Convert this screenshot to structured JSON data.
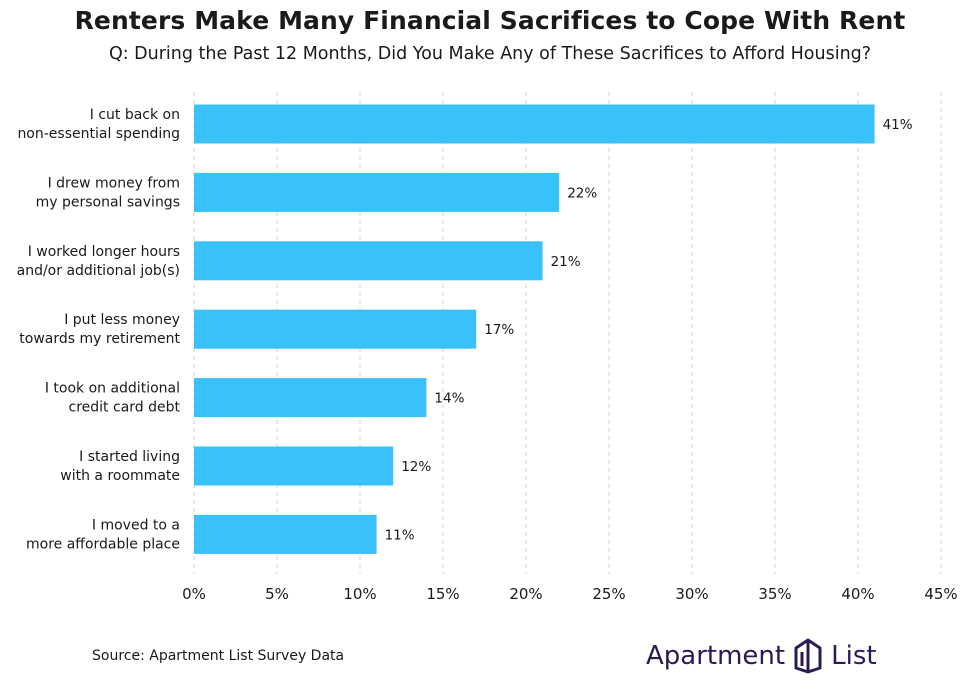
{
  "title": "Renters Make Many Financial Sacrifices to Cope With Rent",
  "subtitle": "Q: During the Past 12 Months, Did You Make Any of These Sacrifices to Afford Housing?",
  "source": "Source: Apartment List Survey Data",
  "brand": {
    "word1": "Apartment",
    "word2": "List",
    "logo_icon": "apartment-list-logo-icon"
  },
  "colors": {
    "bar": "#38c1fb",
    "grid": "#d0d0d0",
    "text": "#1a1a1a",
    "brand": "#2c1a52"
  },
  "chart_data": {
    "type": "bar",
    "orientation": "horizontal",
    "categories": [
      [
        "I cut back on",
        "non-essential spending"
      ],
      [
        "I drew money from",
        "my personal savings"
      ],
      [
        "I worked longer hours",
        "and/or additional job(s)"
      ],
      [
        "I put less money",
        "towards my retirement"
      ],
      [
        "I took on additional",
        "credit card debt"
      ],
      [
        "I started living",
        "with a roommate"
      ],
      [
        "I moved to a",
        "more affordable place"
      ]
    ],
    "values": [
      41,
      22,
      21,
      17,
      14,
      12,
      11
    ],
    "value_labels": [
      "41%",
      "22%",
      "21%",
      "17%",
      "14%",
      "12%",
      "11%"
    ],
    "xlim": [
      0,
      45
    ],
    "x_ticks": [
      0,
      5,
      10,
      15,
      20,
      25,
      30,
      35,
      40,
      45
    ],
    "x_tick_labels": [
      "0%",
      "5%",
      "10%",
      "15%",
      "20%",
      "25%",
      "30%",
      "35%",
      "40%",
      "45%"
    ],
    "grid": "vertical dashed",
    "legend": "none"
  }
}
